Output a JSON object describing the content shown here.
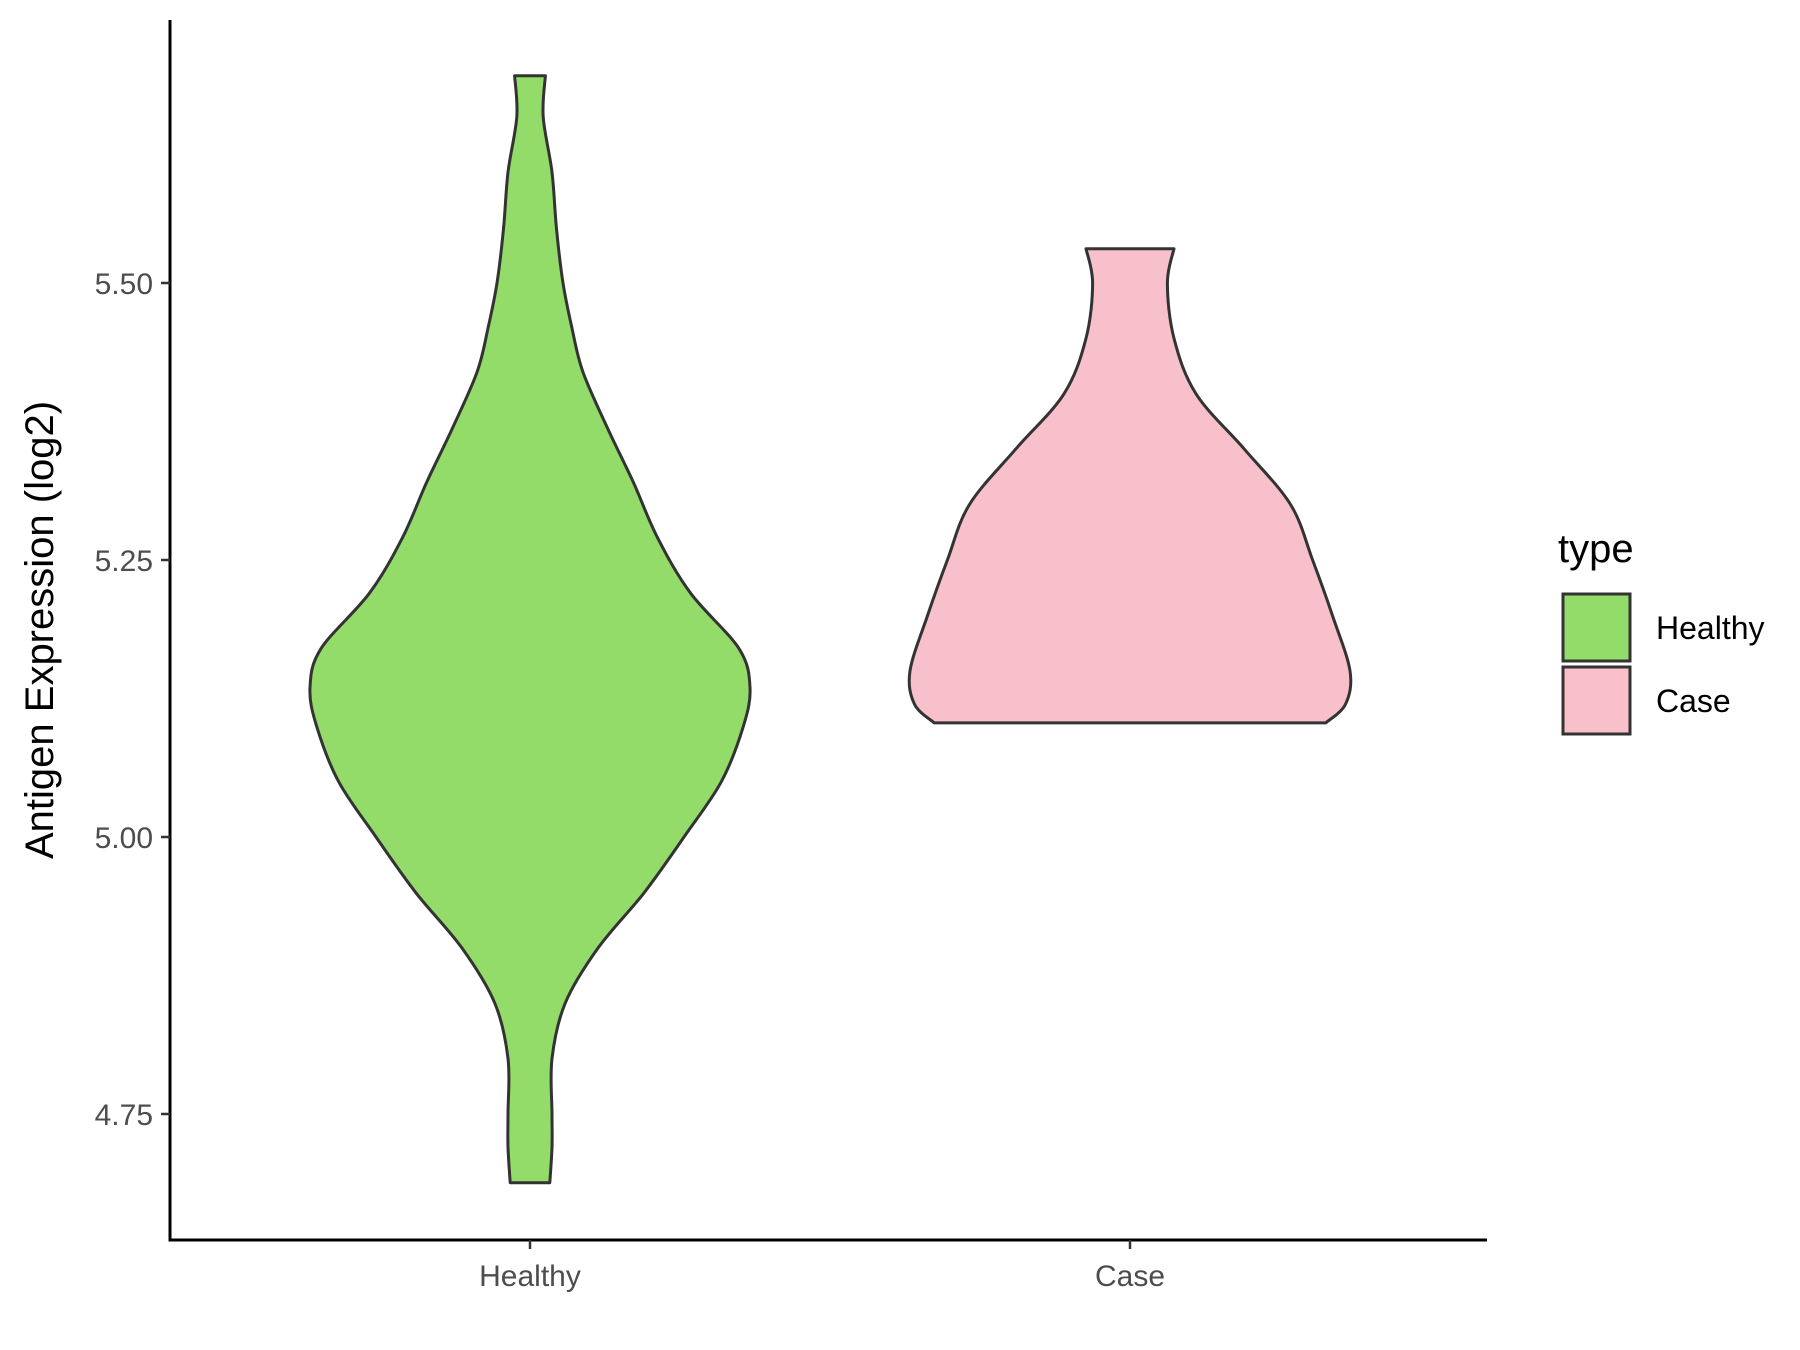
{
  "chart_data": {
    "type": "violin",
    "title": "",
    "xlabel": "",
    "ylabel": "Antigen Expression (log2)",
    "categories": [
      "Healthy",
      "Case"
    ],
    "ylim": [
      4.64,
      5.73
    ],
    "y_ticks": [
      4.75,
      5.0,
      5.25,
      5.5
    ],
    "y_tick_labels": [
      "4.75",
      "5.00",
      "5.25",
      "5.50"
    ],
    "grid": false,
    "legend": {
      "title": "type",
      "position": "right",
      "entries": [
        {
          "label": "Healthy",
          "color": "#93dc6a"
        },
        {
          "label": "Case",
          "color": "#f8c0cb"
        }
      ]
    },
    "series": [
      {
        "category": "Healthy",
        "color": "#93dc6a",
        "min": 4.688,
        "max": 5.687,
        "density": [
          [
            4.688,
            0.09
          ],
          [
            4.72,
            0.1
          ],
          [
            4.75,
            0.1
          ],
          [
            4.8,
            0.1
          ],
          [
            4.85,
            0.16
          ],
          [
            4.9,
            0.31
          ],
          [
            4.95,
            0.52
          ],
          [
            5.0,
            0.7
          ],
          [
            5.05,
            0.87
          ],
          [
            5.1,
            0.97
          ],
          [
            5.135,
            1.0
          ],
          [
            5.17,
            0.95
          ],
          [
            5.22,
            0.73
          ],
          [
            5.27,
            0.58
          ],
          [
            5.32,
            0.47
          ],
          [
            5.37,
            0.35
          ],
          [
            5.42,
            0.24
          ],
          [
            5.46,
            0.19
          ],
          [
            5.5,
            0.15
          ],
          [
            5.55,
            0.12
          ],
          [
            5.6,
            0.1
          ],
          [
            5.65,
            0.06
          ],
          [
            5.687,
            0.07
          ]
        ]
      },
      {
        "category": "Case",
        "color": "#f8c0cb",
        "min": 5.103,
        "max": 5.531,
        "density": [
          [
            5.103,
            0.89
          ],
          [
            5.12,
            0.98
          ],
          [
            5.15,
            1.0
          ],
          [
            5.2,
            0.92
          ],
          [
            5.25,
            0.83
          ],
          [
            5.3,
            0.73
          ],
          [
            5.35,
            0.52
          ],
          [
            5.4,
            0.3
          ],
          [
            5.45,
            0.2
          ],
          [
            5.5,
            0.17
          ],
          [
            5.531,
            0.2
          ]
        ]
      }
    ]
  }
}
